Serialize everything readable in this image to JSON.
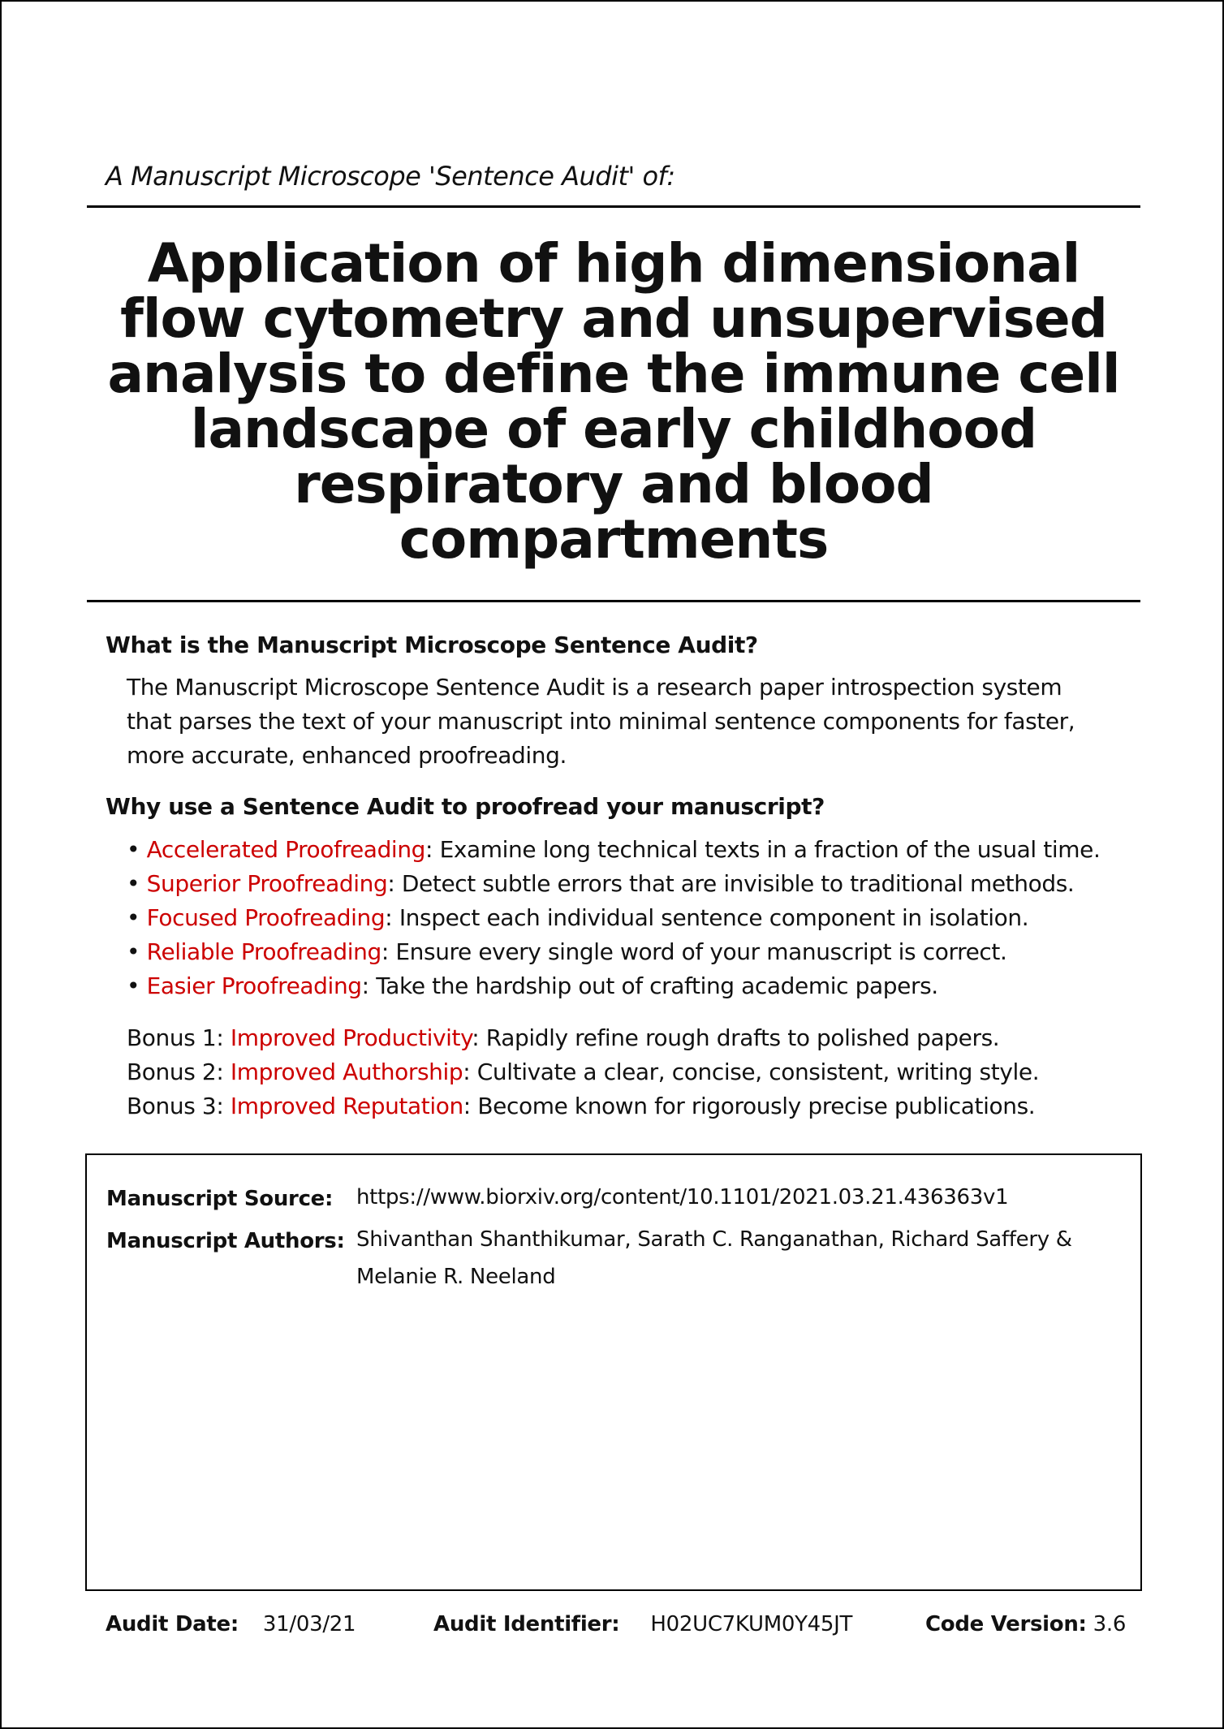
{
  "header": {
    "kicker": "A Manuscript Microscope 'Sentence Audit' of:",
    "title_lines": [
      "Application of high dimensional",
      "flow cytometry and unsupervised",
      "analysis to define the immune cell",
      "landscape of early childhood",
      "respiratory and blood",
      "compartments"
    ]
  },
  "what": {
    "heading": "What is the Manuscript Microscope Sentence Audit?",
    "lines": [
      "The Manuscript Microscope Sentence Audit is a research paper introspection system",
      "that parses the text of your manuscript into minimal sentence components for faster,",
      "more accurate, enhanced proofreading."
    ]
  },
  "why": {
    "heading": "Why use a Sentence Audit to proofread your manuscript?",
    "bullet_symbol": "•",
    "bullets": [
      {
        "term": "Accelerated Proofreading",
        "text": ": Examine long technical texts in a fraction of the usual time."
      },
      {
        "term": "Superior Proofreading",
        "text": ": Detect subtle errors that are invisible to traditional methods."
      },
      {
        "term": "Focused Proofreading",
        "text": ": Inspect each individual sentence component in isolation."
      },
      {
        "term": "Reliable Proofreading",
        "text": ": Ensure every single word of your manuscript is correct."
      },
      {
        "term": "Easier Proofreading",
        "text": ": Take the hardship out of crafting academic papers."
      }
    ],
    "bonuses": [
      {
        "prefix": "Bonus 1: ",
        "term": "Improved Productivity",
        "text": ": Rapidly refine rough drafts to polished papers."
      },
      {
        "prefix": "Bonus 2: ",
        "term": "Improved Authorship",
        "text": ": Cultivate a clear, concise, consistent, writing style."
      },
      {
        "prefix": "Bonus 3: ",
        "term": "Improved Reputation",
        "text": ": Become known for rigorously precise publications."
      }
    ]
  },
  "manuscript": {
    "source_label": "Manuscript Source:",
    "source_value": "https://www.biorxiv.org/content/10.1101/2021.03.21.436363v1",
    "authors_label": "Manuscript Authors:",
    "authors_lines": [
      "Shivanthan Shanthikumar, Sarath C. Ranganathan, Richard Saffery &",
      "Melanie R. Neeland"
    ]
  },
  "footer": {
    "date_label": "Audit Date:",
    "date_value": "31/03/21",
    "id_label": "Audit Identifier:",
    "id_value": "H02UC7KUM0Y45JT",
    "version_label": "Code Version:",
    "version_value": "3.6"
  },
  "colors": {
    "highlight": "#cc0000",
    "text": "#111111",
    "border": "#000000"
  }
}
